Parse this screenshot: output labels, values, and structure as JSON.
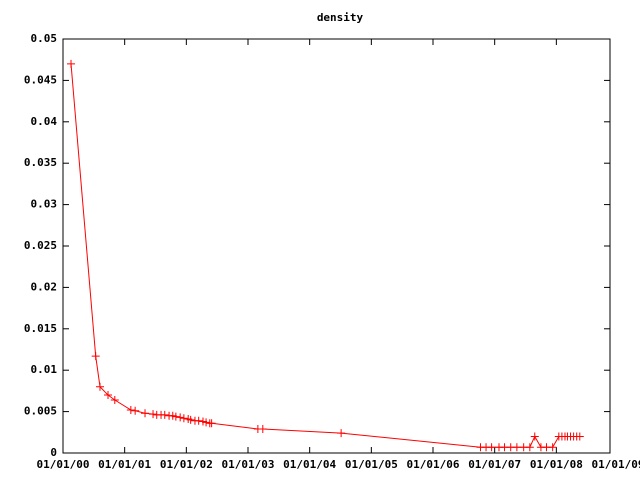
{
  "chart_data": {
    "type": "line",
    "title": "density",
    "x": [
      2000.13,
      2000.53,
      2000.6,
      2000.73,
      2000.84,
      2001.1,
      2001.17,
      2001.33,
      2001.46,
      2001.52,
      2001.59,
      2001.65,
      2001.72,
      2001.78,
      2001.83,
      2001.9,
      2001.96,
      2002.03,
      2002.07,
      2002.14,
      2002.2,
      2002.27,
      2002.32,
      2002.38,
      2002.41,
      2003.16,
      2003.24,
      2004.51,
      2006.77,
      2006.86,
      2006.95,
      2007.07,
      2007.16,
      2007.26,
      2007.36,
      2007.47,
      2007.57,
      2007.65,
      2007.75,
      2007.84,
      2007.94,
      2008.04,
      2008.09,
      2008.14,
      2008.18,
      2008.23,
      2008.28,
      2008.33,
      2008.38
    ],
    "series": [
      {
        "color": "#ff0000",
        "values": [
          0.047,
          0.0117,
          0.008,
          0.007,
          0.0064,
          0.0052,
          0.0051,
          0.0048,
          0.0047,
          0.0046,
          0.0046,
          0.0046,
          0.0045,
          0.0045,
          0.0044,
          0.0043,
          0.0042,
          0.0041,
          0.004,
          0.0039,
          0.0039,
          0.0038,
          0.0037,
          0.0036,
          0.0036,
          0.0029,
          0.0029,
          0.0024,
          0.0007,
          0.0007,
          0.0007,
          0.0007,
          0.0007,
          0.0007,
          0.0007,
          0.0007,
          0.0007,
          0.002,
          0.0007,
          0.0007,
          0.0007,
          0.002,
          0.002,
          0.002,
          0.002,
          0.002,
          0.002,
          0.002,
          0.002
        ]
      }
    ],
    "xlim": [
      2000,
      2008.87
    ],
    "xticks": [
      {
        "value": 2000,
        "label": "01/01/00"
      },
      {
        "value": 2001,
        "label": "01/01/01"
      },
      {
        "value": 2002,
        "label": "01/01/02"
      },
      {
        "value": 2003,
        "label": "01/01/03"
      },
      {
        "value": 2004,
        "label": "01/01/04"
      },
      {
        "value": 2005,
        "label": "01/01/05"
      },
      {
        "value": 2006,
        "label": "01/01/06"
      },
      {
        "value": 2007,
        "label": "01/01/07"
      },
      {
        "value": 2008,
        "label": "01/01/08"
      },
      {
        "value": 2009,
        "label": "01/01/09"
      }
    ],
    "ylim": [
      0,
      0.05
    ],
    "yticks": [
      0,
      0.005,
      0.01,
      0.015,
      0.02,
      0.025,
      0.03,
      0.035,
      0.04,
      0.045,
      0.05
    ],
    "grid": false
  }
}
